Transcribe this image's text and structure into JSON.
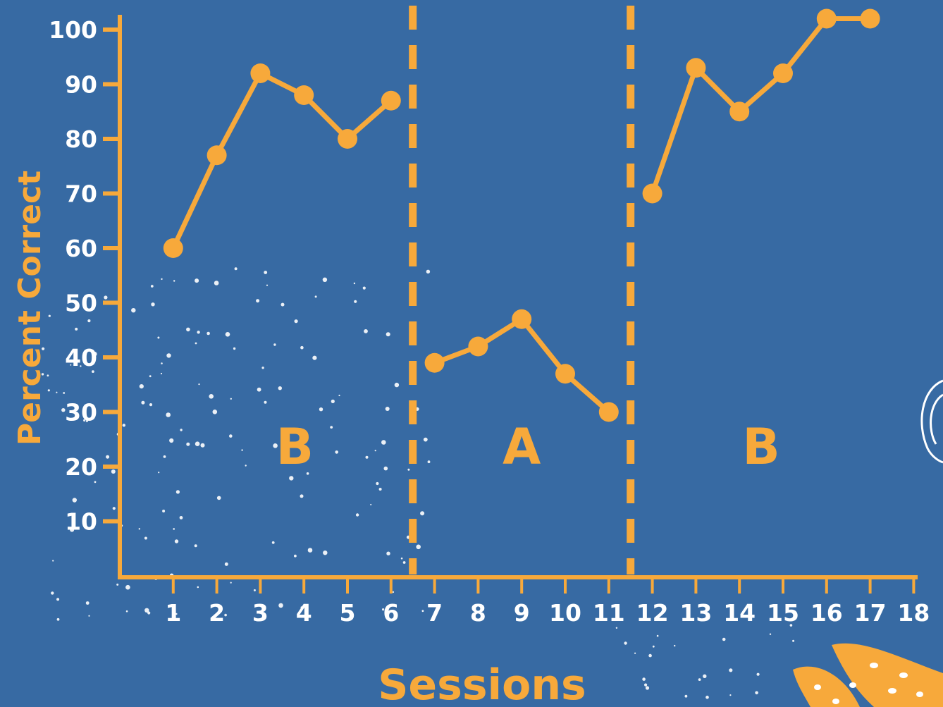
{
  "colors": {
    "background": "#376aa3",
    "accent": "#f7a93b",
    "tick_label": "#ffffff",
    "speckle": "#ffffff"
  },
  "decorations": [
    "white-speckles",
    "orange-spotted-coral",
    "white-outline-shape"
  ],
  "chart_data": {
    "type": "line",
    "title": "",
    "xlabel": "Sessions",
    "ylabel": "Percent Correct",
    "xlim": [
      0,
      18
    ],
    "ylim": [
      0,
      100
    ],
    "x_ticks": [
      1,
      2,
      3,
      4,
      5,
      6,
      7,
      8,
      9,
      10,
      11,
      12,
      13,
      14,
      15,
      16,
      17,
      18
    ],
    "y_ticks": [
      10,
      20,
      30,
      40,
      50,
      60,
      70,
      80,
      90,
      100
    ],
    "grid": false,
    "phase_lines": [
      6.5,
      11.5
    ],
    "phases": [
      {
        "label": "B",
        "start": 1,
        "end": 6
      },
      {
        "label": "A",
        "start": 7,
        "end": 11
      },
      {
        "label": "B",
        "start": 12,
        "end": 17
      }
    ],
    "series": [
      {
        "x": [
          1,
          2,
          3,
          4,
          5,
          6
        ],
        "y": [
          60,
          77,
          92,
          88,
          80,
          87
        ]
      },
      {
        "x": [
          7,
          8,
          9,
          10,
          11
        ],
        "y": [
          39,
          42,
          47,
          37,
          30
        ]
      },
      {
        "x": [
          12,
          13,
          14,
          15,
          16,
          17
        ],
        "y": [
          70,
          93,
          85,
          92,
          102,
          102
        ]
      }
    ]
  }
}
